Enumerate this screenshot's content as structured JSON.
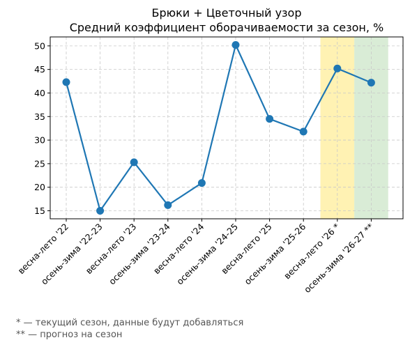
{
  "chart_data": {
    "type": "line",
    "title": "Брюки + Цветочный узор",
    "subtitle": "Средний коэффициент оборачиваемости за сезон, %",
    "xlabel": "",
    "ylabel": "",
    "categories": [
      "весна-лето '22",
      "осень-зима '22-23",
      "весна-лето '23",
      "осень-зима '23-24",
      "весна-лето '24",
      "осень-зима '24-25",
      "весна-лето '25",
      "осень-зима '25-26",
      "весна-лето '26 *",
      "осень-зима '26-27 **"
    ],
    "series": [
      {
        "values": [
          42.3,
          15.0,
          25.3,
          16.2,
          20.9,
          50.2,
          34.5,
          31.8,
          45.2,
          42.2
        ]
      }
    ],
    "ylim": [
      13.3,
      51.9
    ],
    "yticks": [
      15,
      20,
      25,
      30,
      35,
      40,
      45,
      50
    ],
    "grid": true,
    "line_color": "#1f77b4",
    "highlights": [
      {
        "category_index": 8,
        "color": "#fff2b3"
      },
      {
        "category_index": 9,
        "color": "#d9ecd6"
      }
    ]
  },
  "footnotes": {
    "current": "* — текущий сезон, данные будут добавляться",
    "forecast": "** — прогноз на сезон"
  }
}
